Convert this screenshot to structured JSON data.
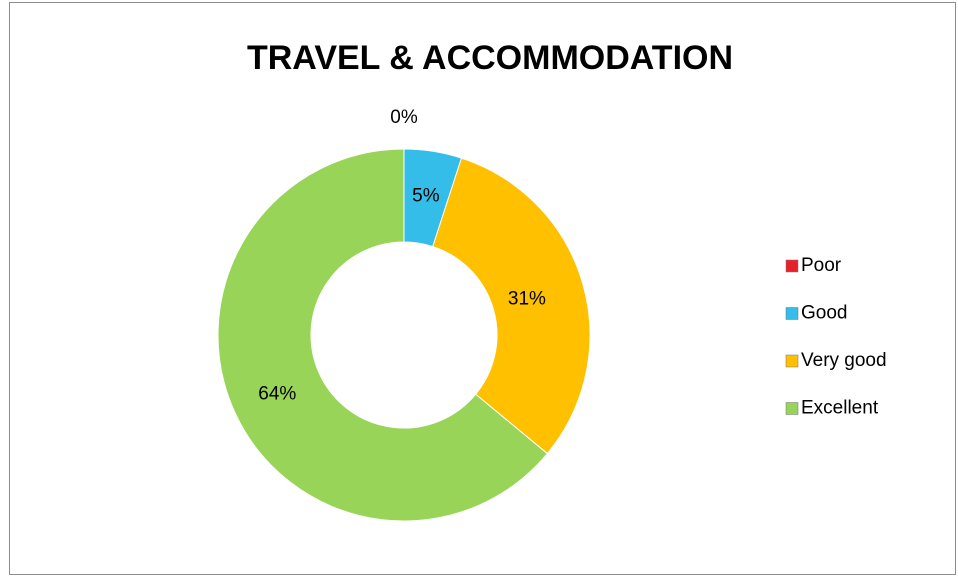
{
  "chart_data": {
    "type": "donut",
    "title": "TRAVEL & ACCOMMODATION",
    "categories": [
      "Poor",
      "Good",
      "Very good",
      "Excellent"
    ],
    "values": [
      0,
      5,
      31,
      64
    ],
    "value_labels": [
      "0%",
      "5%",
      "31%",
      "64%"
    ],
    "colors": [
      "#e8202a",
      "#33bde8",
      "#ffc000",
      "#98d458"
    ],
    "legend": "right"
  }
}
